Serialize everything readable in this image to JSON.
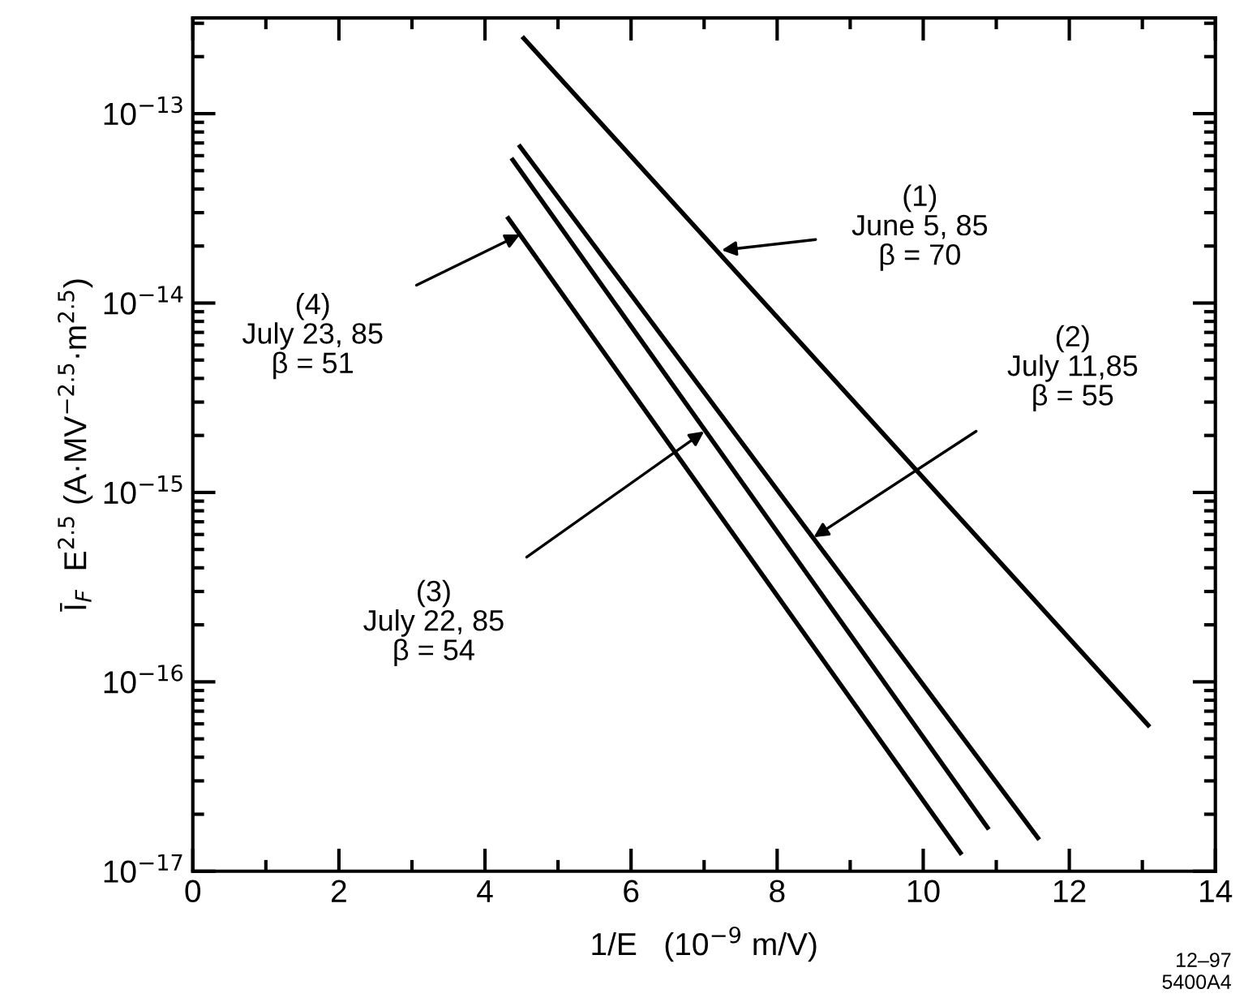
{
  "chart_data": {
    "type": "line",
    "xlabel": "1/E   (10$^{−9}$ m/V)",
    "ylabel": "Ī$_{F}$  E$^{2.5}$ (A·MV$^{−2.5}$·m$^{2.5}$)",
    "log": "y",
    "grid": false,
    "legend": false,
    "marker": "none",
    "line_style": "solid",
    "xlim": [
      0,
      14
    ],
    "xticks": [
      0,
      2,
      4,
      6,
      8,
      10,
      12,
      14
    ],
    "ylim": [
      1e-17,
      3.2e-13
    ],
    "yticks": [
      {
        "value": 1e-17,
        "label": "10$^{−17}$"
      },
      {
        "value": 1e-16,
        "label": "10$^{−16}$"
      },
      {
        "value": 1e-15,
        "label": "10$^{−15}$"
      },
      {
        "value": 1e-14,
        "label": "10$^{−14}$"
      },
      {
        "value": 1e-13,
        "label": "10$^{−13}$"
      }
    ],
    "series": [
      {
        "color": "#000000",
        "x": [
          4.53,
          13.08
        ],
        "values": [
          2.5e-13,
          5.9e-17
        ]
      },
      {
        "color": "#000000",
        "x": [
          4.48,
          11.57
        ],
        "values": [
          6.7e-14,
          1.5e-17
        ]
      },
      {
        "color": "#000000",
        "x": [
          4.38,
          10.88
        ],
        "values": [
          5.7e-14,
          1.7e-17
        ]
      },
      {
        "color": "#000000",
        "x": [
          4.32,
          10.51
        ],
        "values": [
          2.8e-14,
          1.25e-17
        ]
      }
    ],
    "annotations": [
      {
        "text": "(1)\nJune 5, 85\nβ = 70",
        "x": 7.24,
        "y": 1.9e-14
      },
      {
        "text": "(2)\nJuly 11,85\nβ = 55",
        "x": 8.5,
        "y": 5.8e-16
      },
      {
        "text": "(3)\nJuly 22, 85\nβ = 54",
        "x": 7.0,
        "y": 2.1e-15
      },
      {
        "text": "(4)\nJuly 23, 85\nβ = 51",
        "x": 4.48,
        "y": 2.3e-14
      },
      "12–97\n5400A4"
    ]
  }
}
